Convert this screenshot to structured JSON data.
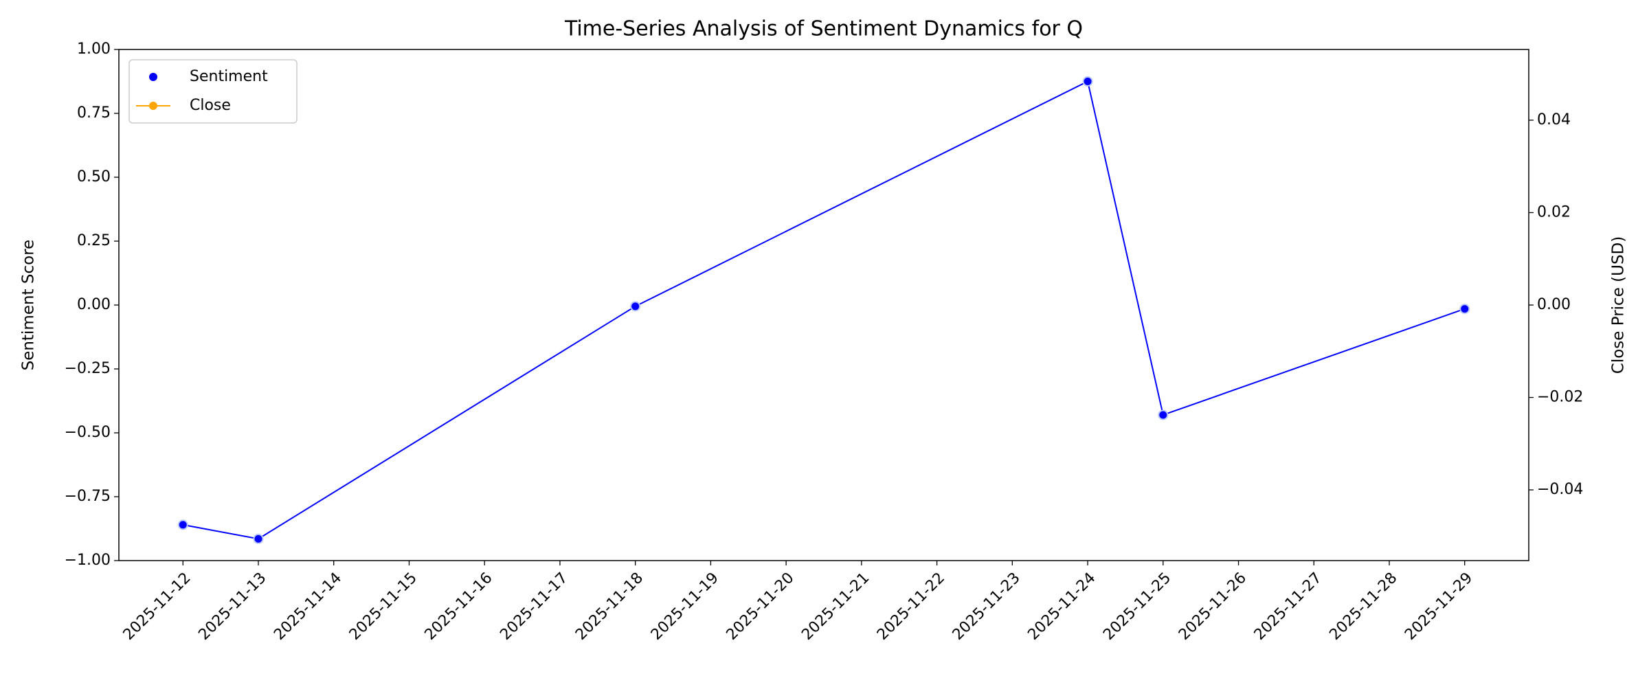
{
  "chart_data": {
    "type": "line",
    "title": "Time-Series Analysis of Sentiment Dynamics for Q",
    "y_label": "Sentiment Score",
    "y2_label": "Close Price (USD)",
    "x": [
      "2025-11-12",
      "2025-11-13",
      "2025-11-18",
      "2025-11-24",
      "2025-11-25",
      "2025-11-29"
    ],
    "series": [
      {
        "name": "Sentiment",
        "color": "#0000ff",
        "values": [
          -0.86,
          -0.915,
          -0.005,
          0.875,
          -0.43,
          -0.015
        ]
      },
      {
        "name": "Close",
        "color": "#ffa500",
        "axis": "y2",
        "values": [
          null,
          null,
          null,
          null,
          null,
          null
        ]
      }
    ],
    "xlim": [
      "2025-11-11T03:36",
      "2025-11-29T20:24"
    ],
    "xticks": [
      "2025-11-12",
      "2025-11-13",
      "2025-11-14",
      "2025-11-15",
      "2025-11-16",
      "2025-11-17",
      "2025-11-18",
      "2025-11-19",
      "2025-11-20",
      "2025-11-21",
      "2025-11-22",
      "2025-11-23",
      "2025-11-24",
      "2025-11-25",
      "2025-11-26",
      "2025-11-27",
      "2025-11-28",
      "2025-11-29"
    ],
    "ylim": [
      -1,
      1
    ],
    "yticks": [
      {
        "value": -1,
        "label": "−1.00"
      },
      {
        "value": -0.75,
        "label": "−0.75"
      },
      {
        "value": -0.5,
        "label": "−0.50"
      },
      {
        "value": -0.25,
        "label": "−0.25"
      },
      {
        "value": 0,
        "label": "0.00"
      },
      {
        "value": 0.25,
        "label": "0.25"
      },
      {
        "value": 0.5,
        "label": "0.50"
      },
      {
        "value": 0.75,
        "label": "0.75"
      },
      {
        "value": 1,
        "label": "1.00"
      }
    ],
    "y2lim": [
      -0.0553,
      0.0553
    ],
    "y2ticks": [
      {
        "value": -0.04,
        "label": "−0.04"
      },
      {
        "value": -0.02,
        "label": "−0.02"
      },
      {
        "value": 0,
        "label": "0.00"
      },
      {
        "value": 0.02,
        "label": "0.02"
      },
      {
        "value": 0.04,
        "label": "0.04"
      }
    ],
    "grid": false,
    "legend": "upper left"
  }
}
